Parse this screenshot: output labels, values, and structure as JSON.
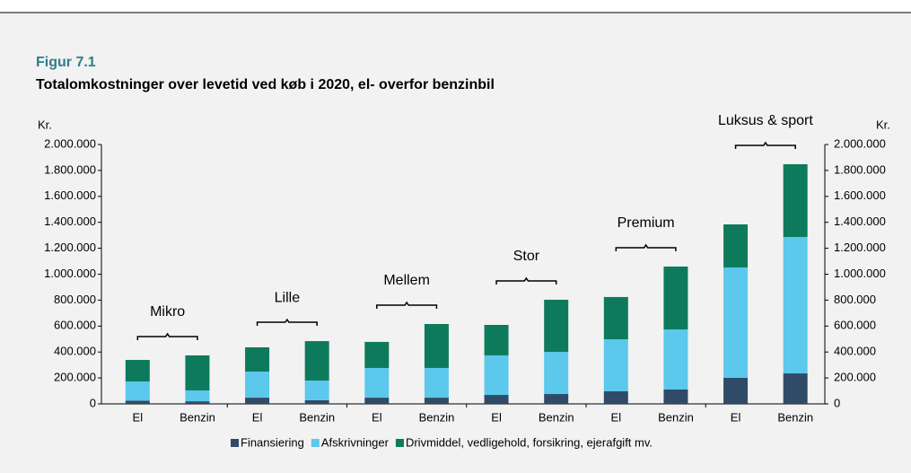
{
  "chart_data": {
    "type": "stacked_bar",
    "figure_label": "Figur 7.1",
    "title": "Totalomkostninger over levetid ved køb i 2020, el- overfor benzinbil",
    "y_label": "Kr.",
    "y2_label": "Kr.",
    "categories": [
      "El",
      "Benzin",
      "El",
      "Benzin",
      "El",
      "Benzin",
      "El",
      "Benzin",
      "El",
      "Benzin",
      "El",
      "Benzin"
    ],
    "groups": [
      "Mikro",
      "Lille",
      "Mellem",
      "Stor",
      "Premium",
      "Luksus & sport"
    ],
    "series": [
      {
        "name": "Finansiering",
        "color": "#2f4b68",
        "values": [
          25000,
          20000,
          48000,
          28000,
          48000,
          48000,
          69000,
          76000,
          97000,
          111000,
          201000,
          235000
        ]
      },
      {
        "name": "Afskrivninger",
        "color": "#5bc8ec",
        "values": [
          148000,
          84000,
          201000,
          152000,
          229000,
          229000,
          305000,
          325000,
          401000,
          463000,
          851000,
          1052000
        ]
      },
      {
        "name": "Drivmiddel, vedligehold, forsikring, ejerafgift mv.",
        "color": "#0e7a5c",
        "values": [
          166000,
          270000,
          187000,
          304000,
          201000,
          339000,
          235000,
          402000,
          326000,
          485000,
          332000,
          561000
        ]
      }
    ],
    "ylim": [
      0,
      2000000
    ],
    "yticks": [
      0,
      {
        "value": 200000,
        "label": "200.000"
      },
      {
        "value": 400000,
        "label": "400.000"
      },
      {
        "value": 600000,
        "label": "600.000"
      },
      {
        "value": 800000,
        "label": "800.000"
      },
      {
        "value": 1000000,
        "label": "1.000.000"
      },
      {
        "value": 1200000,
        "label": "1.200.000"
      },
      {
        "value": 1400000,
        "label": "1.400.000"
      },
      {
        "value": 1600000,
        "label": "1.600.000"
      },
      {
        "value": 1800000,
        "label": "1.800.000"
      },
      {
        "value": 2000000,
        "label": "2.000.000"
      }
    ],
    "y2lim": [
      0,
      2000000
    ],
    "y2ticks": [
      0,
      {
        "value": 200000,
        "label": "200.000"
      },
      {
        "value": 400000,
        "label": "400.000"
      },
      {
        "value": 600000,
        "label": "600.000"
      },
      {
        "value": 800000,
        "label": "800.000"
      },
      {
        "value": 1000000,
        "label": "1.000.000"
      },
      {
        "value": 1200000,
        "label": "1.200.000"
      },
      {
        "value": 1400000,
        "label": "1.400.000"
      },
      {
        "value": 1600000,
        "label": "1.600.000"
      },
      {
        "value": 1800000,
        "label": "1.800.000"
      },
      {
        "value": 2000000,
        "label": "2.000.000"
      }
    ]
  }
}
